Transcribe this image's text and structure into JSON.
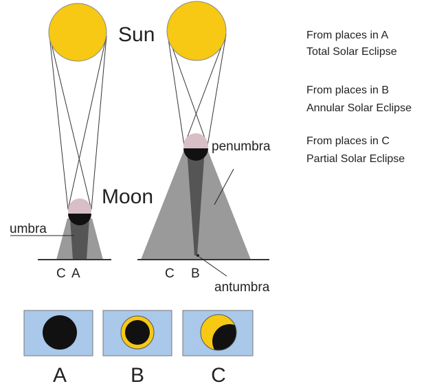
{
  "labels": {
    "sun": "Sun",
    "moon": "Moon",
    "umbra": "umbra",
    "penumbra": "penumbra",
    "antumbra": "antumbra",
    "ground_left": [
      "C",
      "A"
    ],
    "ground_right": [
      "C",
      "B"
    ]
  },
  "legend": [
    {
      "line1": "From places in A",
      "line2": "Total Solar Eclipse"
    },
    {
      "line1": "From places in B",
      "line2": "Annular Solar Eclipse"
    },
    {
      "line1": "From places in C",
      "line2": "Partial Solar Eclipse"
    }
  ],
  "views": [
    "A",
    "B",
    "C"
  ]
}
